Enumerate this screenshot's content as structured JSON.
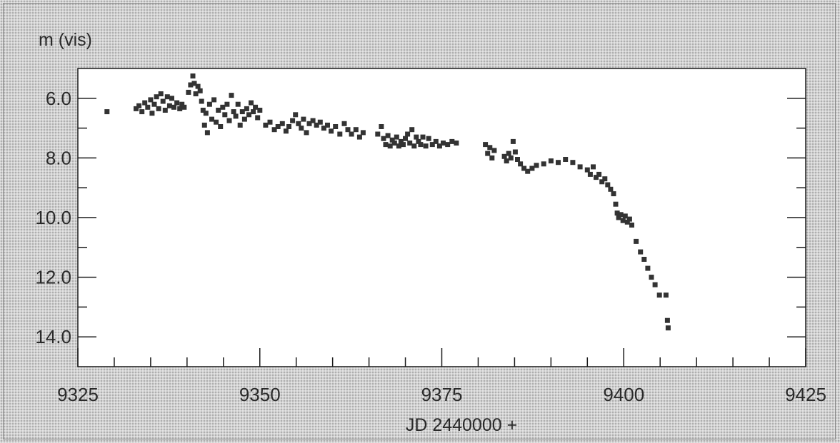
{
  "chart_data": {
    "type": "scatter",
    "title": "",
    "ylabel": "m (vis)",
    "xlabel": "JD 2440000 +",
    "xlim": [
      9325,
      9425
    ],
    "ylim": [
      5.0,
      15.0
    ],
    "y_inverted": true,
    "x_ticks": [
      9325,
      9350,
      9375,
      9400,
      9425
    ],
    "x_tick_labels": [
      "9325",
      "9350",
      "9375",
      "9400",
      "9425"
    ],
    "y_ticks": [
      6.0,
      8.0,
      10.0,
      12.0,
      14.0
    ],
    "y_tick_labels": [
      "6.0",
      "8.0",
      "10.0",
      "12.0",
      "14.0"
    ],
    "grid": false,
    "points": [
      [
        9329.0,
        6.45
      ],
      [
        9333.0,
        6.35
      ],
      [
        9333.4,
        6.25
      ],
      [
        9333.8,
        6.45
      ],
      [
        9334.2,
        6.15
      ],
      [
        9334.6,
        6.3
      ],
      [
        9335.0,
        6.05
      ],
      [
        9335.2,
        6.5
      ],
      [
        9335.5,
        6.2
      ],
      [
        9335.8,
        5.95
      ],
      [
        9336.1,
        6.35
      ],
      [
        9336.4,
        5.85
      ],
      [
        9336.7,
        6.1
      ],
      [
        9337.0,
        6.4
      ],
      [
        9337.3,
        5.95
      ],
      [
        9337.6,
        6.25
      ],
      [
        9337.9,
        6.0
      ],
      [
        9338.2,
        6.3
      ],
      [
        9338.6,
        6.15
      ],
      [
        9339.0,
        6.35
      ],
      [
        9339.3,
        6.2
      ],
      [
        9339.6,
        6.3
      ],
      [
        9340.2,
        5.8
      ],
      [
        9340.5,
        5.55
      ],
      [
        9340.8,
        5.25
      ],
      [
        9341.0,
        5.5
      ],
      [
        9341.2,
        5.85
      ],
      [
        9341.5,
        5.6
      ],
      [
        9341.8,
        5.75
      ],
      [
        9342.0,
        6.1
      ],
      [
        9342.2,
        6.4
      ],
      [
        9342.4,
        6.9
      ],
      [
        9342.6,
        6.5
      ],
      [
        9342.8,
        7.15
      ],
      [
        9343.1,
        6.2
      ],
      [
        9343.4,
        6.7
      ],
      [
        9343.7,
        6.05
      ],
      [
        9344.0,
        6.8
      ],
      [
        9344.3,
        6.4
      ],
      [
        9344.6,
        6.95
      ],
      [
        9344.9,
        6.3
      ],
      [
        9345.2,
        6.55
      ],
      [
        9345.5,
        6.2
      ],
      [
        9345.8,
        6.75
      ],
      [
        9346.1,
        5.9
      ],
      [
        9346.4,
        6.45
      ],
      [
        9346.7,
        6.6
      ],
      [
        9347.0,
        6.2
      ],
      [
        9347.3,
        6.9
      ],
      [
        9347.6,
        6.45
      ],
      [
        9347.9,
        6.7
      ],
      [
        9348.2,
        6.35
      ],
      [
        9348.5,
        6.55
      ],
      [
        9348.8,
        6.15
      ],
      [
        9349.1,
        6.45
      ],
      [
        9349.4,
        6.3
      ],
      [
        9349.7,
        6.65
      ],
      [
        9350.0,
        6.4
      ],
      [
        9350.8,
        6.9
      ],
      [
        9351.4,
        6.8
      ],
      [
        9352.0,
        7.05
      ],
      [
        9352.5,
        6.95
      ],
      [
        9353.1,
        6.85
      ],
      [
        9353.6,
        7.1
      ],
      [
        9354.0,
        6.95
      ],
      [
        9354.5,
        6.75
      ],
      [
        9354.9,
        6.55
      ],
      [
        9355.3,
        6.85
      ],
      [
        9355.7,
        7.0
      ],
      [
        9356.0,
        6.7
      ],
      [
        9356.4,
        7.15
      ],
      [
        9356.8,
        6.85
      ],
      [
        9357.3,
        6.75
      ],
      [
        9357.8,
        6.9
      ],
      [
        9358.3,
        6.8
      ],
      [
        9358.8,
        7.0
      ],
      [
        9359.3,
        6.9
      ],
      [
        9359.8,
        7.1
      ],
      [
        9360.4,
        6.95
      ],
      [
        9361.0,
        7.2
      ],
      [
        9361.6,
        6.85
      ],
      [
        9362.1,
        7.05
      ],
      [
        9362.6,
        7.2
      ],
      [
        9363.2,
        7.05
      ],
      [
        9363.7,
        7.3
      ],
      [
        9364.2,
        7.15
      ],
      [
        9366.2,
        7.2
      ],
      [
        9366.7,
        6.95
      ],
      [
        9367.0,
        7.35
      ],
      [
        9367.3,
        7.55
      ],
      [
        9367.6,
        7.25
      ],
      [
        9367.9,
        7.6
      ],
      [
        9368.2,
        7.4
      ],
      [
        9368.5,
        7.5
      ],
      [
        9368.8,
        7.3
      ],
      [
        9369.1,
        7.6
      ],
      [
        9369.4,
        7.45
      ],
      [
        9369.7,
        7.55
      ],
      [
        9370.0,
        7.35
      ],
      [
        9370.3,
        7.2
      ],
      [
        9370.6,
        7.5
      ],
      [
        9370.9,
        7.05
      ],
      [
        9371.2,
        7.6
      ],
      [
        9371.5,
        7.3
      ],
      [
        9371.8,
        7.45
      ],
      [
        9372.1,
        7.55
      ],
      [
        9372.4,
        7.3
      ],
      [
        9372.8,
        7.6
      ],
      [
        9373.2,
        7.35
      ],
      [
        9373.7,
        7.55
      ],
      [
        9374.2,
        7.45
      ],
      [
        9374.7,
        7.6
      ],
      [
        9375.2,
        7.5
      ],
      [
        9375.8,
        7.55
      ],
      [
        9376.4,
        7.45
      ],
      [
        9377.0,
        7.5
      ],
      [
        9381.0,
        7.55
      ],
      [
        9381.3,
        7.85
      ],
      [
        9381.6,
        7.65
      ],
      [
        9381.9,
        8.0
      ],
      [
        9382.2,
        7.75
      ],
      [
        9383.6,
        7.95
      ],
      [
        9383.9,
        8.1
      ],
      [
        9384.2,
        7.85
      ],
      [
        9384.5,
        8.0
      ],
      [
        9384.8,
        7.45
      ],
      [
        9385.1,
        7.8
      ],
      [
        9385.4,
        8.05
      ],
      [
        9385.8,
        8.2
      ],
      [
        9386.3,
        8.35
      ],
      [
        9386.8,
        8.45
      ],
      [
        9387.4,
        8.35
      ],
      [
        9388.0,
        8.25
      ],
      [
        9389.0,
        8.2
      ],
      [
        9390.0,
        8.1
      ],
      [
        9391.0,
        8.15
      ],
      [
        9392.0,
        8.05
      ],
      [
        9393.0,
        8.15
      ],
      [
        9394.0,
        8.3
      ],
      [
        9395.0,
        8.4
      ],
      [
        9395.4,
        8.55
      ],
      [
        9395.8,
        8.3
      ],
      [
        9396.2,
        8.65
      ],
      [
        9396.6,
        8.55
      ],
      [
        9397.0,
        8.8
      ],
      [
        9397.4,
        8.7
      ],
      [
        9397.8,
        8.9
      ],
      [
        9398.2,
        9.05
      ],
      [
        9398.6,
        9.2
      ],
      [
        9398.9,
        9.55
      ],
      [
        9399.1,
        9.85
      ],
      [
        9399.3,
        10.0
      ],
      [
        9399.6,
        9.9
      ],
      [
        9399.9,
        10.1
      ],
      [
        9400.2,
        9.95
      ],
      [
        9400.5,
        10.15
      ],
      [
        9400.8,
        10.05
      ],
      [
        9401.1,
        10.25
      ],
      [
        9401.7,
        10.8
      ],
      [
        9402.3,
        11.15
      ],
      [
        9402.8,
        11.4
      ],
      [
        9403.3,
        11.7
      ],
      [
        9403.8,
        12.0
      ],
      [
        9404.3,
        12.25
      ],
      [
        9404.9,
        12.6
      ],
      [
        9405.8,
        12.6
      ],
      [
        9406.0,
        13.45
      ],
      [
        9406.1,
        13.7
      ]
    ]
  }
}
